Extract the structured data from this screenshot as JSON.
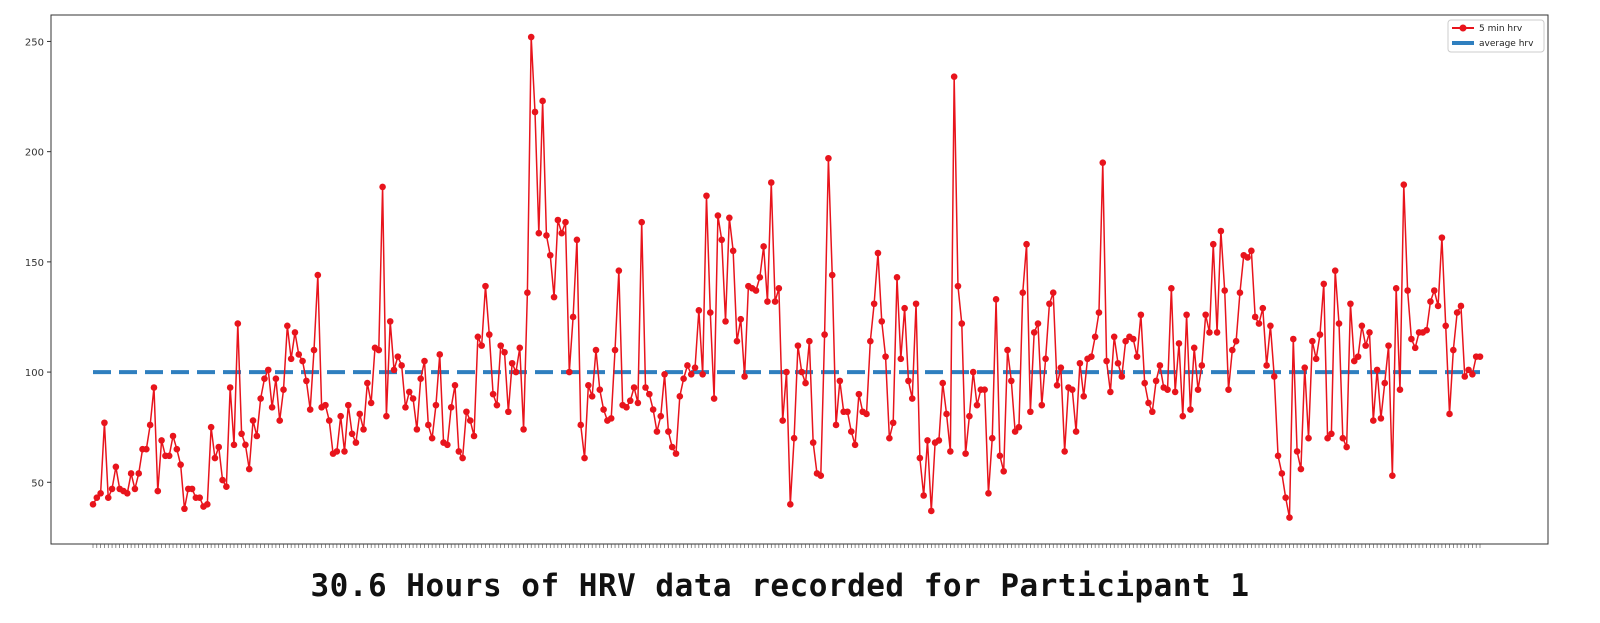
{
  "caption": "30.6 Hours of HRV data recorded for Participant 1",
  "legend": {
    "items": [
      {
        "label": "5 min hrv",
        "color": "#e8141c",
        "style": "line-marker"
      },
      {
        "label": "average hrv",
        "color": "#2f7fbf",
        "style": "dashed"
      }
    ],
    "placement": "top-right"
  },
  "chart_data": {
    "type": "line",
    "title": "",
    "xlabel": "",
    "ylabel": "",
    "ylim": [
      22,
      262
    ],
    "yticks": [
      50,
      100,
      150,
      200,
      250
    ],
    "grid": false,
    "x_tick_labels_visible": false,
    "series": [
      {
        "name": "5 min hrv",
        "color": "#e8141c",
        "marker": "circle",
        "values": [
          40,
          43,
          45,
          77,
          43,
          47,
          57,
          47,
          46,
          45,
          54,
          47,
          54,
          65,
          65,
          76,
          93,
          46,
          69,
          62,
          62,
          71,
          65,
          58,
          38,
          47,
          47,
          43,
          43,
          39,
          40,
          75,
          61,
          66,
          51,
          48,
          93,
          67,
          122,
          72,
          67,
          56,
          78,
          71,
          88,
          97,
          101,
          84,
          97,
          78,
          92,
          121,
          106,
          118,
          108,
          105,
          96,
          83,
          110,
          144,
          84,
          85,
          78,
          63,
          64,
          80,
          64,
          85,
          72,
          68,
          81,
          74,
          95,
          86,
          111,
          110,
          184,
          80,
          123,
          101,
          107,
          103,
          84,
          91,
          88,
          74,
          97,
          105,
          76,
          70,
          85,
          108,
          68,
          67,
          84,
          94,
          64,
          61,
          82,
          78,
          71,
          116,
          112,
          139,
          117,
          90,
          85,
          112,
          109,
          82,
          104,
          100,
          111,
          74,
          136,
          252,
          218,
          163,
          223,
          162,
          153,
          134,
          169,
          163,
          168,
          100,
          125,
          160,
          76,
          61,
          94,
          89,
          110,
          92,
          83,
          78,
          79,
          110,
          146,
          85,
          84,
          87,
          93,
          86,
          168,
          93,
          90,
          83,
          73,
          80,
          99,
          73,
          66,
          63,
          89,
          97,
          103,
          99,
          102,
          128,
          99,
          180,
          127,
          88,
          171,
          160,
          123,
          170,
          155,
          114,
          124,
          98,
          139,
          138,
          137,
          143,
          157,
          132,
          186,
          132,
          138,
          78,
          100,
          40,
          70,
          112,
          100,
          95,
          114,
          68,
          54,
          53,
          117,
          197,
          144,
          76,
          96,
          82,
          82,
          73,
          67,
          90,
          82,
          81,
          114,
          131,
          154,
          123,
          107,
          70,
          77,
          143,
          106,
          129,
          96,
          88,
          131,
          61,
          44,
          69,
          37,
          68,
          69,
          95,
          81,
          64,
          234,
          139,
          122,
          63,
          80,
          100,
          85,
          92,
          92,
          45,
          70,
          133,
          62,
          55,
          110,
          96,
          73,
          75,
          136,
          158,
          82,
          118,
          122,
          85,
          106,
          131,
          136,
          94,
          102,
          64,
          93,
          92,
          73,
          104,
          89,
          106,
          107,
          116,
          127,
          195,
          105,
          91,
          116,
          104,
          98,
          114,
          116,
          115,
          107,
          126,
          95,
          86,
          82,
          96,
          103,
          93,
          92,
          138,
          91,
          113,
          80,
          126,
          83,
          111,
          92,
          103,
          126,
          118,
          158,
          118,
          164,
          137,
          92,
          110,
          114,
          136,
          153,
          152,
          155,
          125,
          122,
          129,
          103,
          121,
          98,
          62,
          54,
          43,
          34,
          115,
          64,
          56,
          102,
          70,
          114,
          106,
          117,
          140,
          70,
          72,
          146,
          122,
          70,
          66,
          131,
          105,
          107,
          121,
          112,
          118,
          78,
          101,
          79,
          95,
          112,
          53,
          138,
          92,
          185,
          137,
          115,
          111,
          118,
          118,
          119,
          132,
          137,
          130,
          161,
          121,
          81,
          110,
          127,
          130,
          98,
          101,
          99,
          107,
          107
        ]
      },
      {
        "name": "average hrv",
        "color": "#2f7fbf",
        "line_style": "dashed",
        "values": [
          100
        ]
      }
    ],
    "y_tick_labels": [
      "50",
      "100",
      "150",
      "200",
      "250"
    ]
  }
}
